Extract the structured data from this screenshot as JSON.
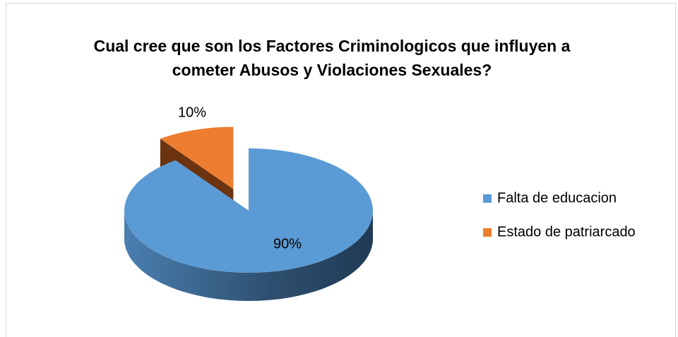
{
  "chart_data": {
    "type": "pie",
    "title": "Cual cree que son los Factores Criminologicos que influyen a cometer Abusos y Violaciones Sexuales?",
    "categories": [
      "Falta de educacion",
      "Estado de patriarcado"
    ],
    "values": [
      90,
      10
    ],
    "value_labels": [
      "90%",
      "10%"
    ],
    "colors": [
      "#5b9bd5",
      "#ed7d31"
    ],
    "legend": "right"
  }
}
